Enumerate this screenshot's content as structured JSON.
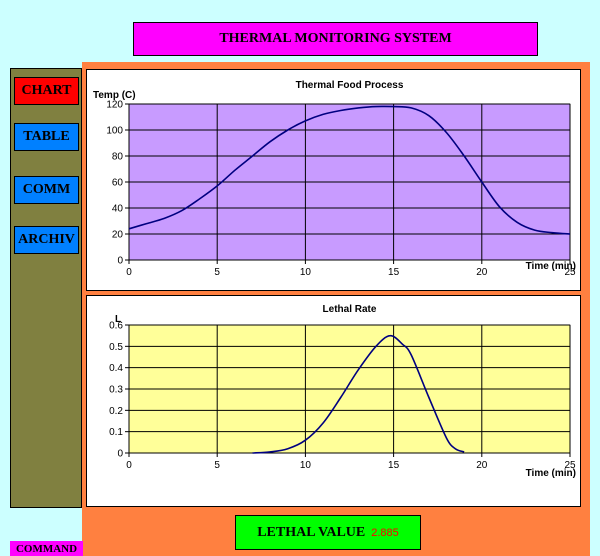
{
  "header": {
    "title": "THERMAL MONITORING SYSTEM"
  },
  "nav": {
    "items": [
      {
        "label": "CHART",
        "color": "#ff0000",
        "active": true
      },
      {
        "label": "TABLE",
        "color": "#0080ff",
        "active": false
      },
      {
        "label": "COMM",
        "color": "#0080ff",
        "active": false
      },
      {
        "label": "ARCHIV",
        "color": "#0080ff",
        "active": false
      }
    ]
  },
  "footer": {
    "lethal_label": "LETHAL VALUE",
    "lethal_value": "2.885",
    "command_label": "COMMAND"
  },
  "colors": {
    "background": "#ccffff",
    "panel": "#ff8040",
    "sidebar": "#808040",
    "accent": "#ff00ff",
    "line": "#000080"
  },
  "chart_data": [
    {
      "type": "line",
      "title": "Thermal Food Process",
      "ylabel": "Temp (C)",
      "xlabel": "Time (min)",
      "xlim": [
        0,
        25
      ],
      "ylim": [
        0,
        120
      ],
      "xticks": [
        0,
        5,
        10,
        15,
        20,
        25
      ],
      "yticks": [
        0,
        20,
        40,
        60,
        80,
        100,
        120
      ],
      "grid": true,
      "plot_bg": "#c89bff",
      "x": [
        0,
        1,
        2,
        3,
        4,
        5,
        6,
        7,
        8,
        9,
        10,
        11,
        12,
        13,
        14,
        15,
        16,
        17,
        18,
        19,
        20,
        21,
        22,
        23,
        24,
        25
      ],
      "values": [
        24,
        28,
        32,
        38,
        47,
        57,
        69,
        80,
        91,
        100,
        107,
        112,
        115,
        117,
        118,
        118,
        117,
        111,
        98,
        80,
        60,
        41,
        29,
        23,
        21,
        20
      ]
    },
    {
      "type": "line",
      "title": "Lethal Rate",
      "ylabel": "L",
      "xlabel": "Time (min)",
      "xlim": [
        0,
        25
      ],
      "ylim": [
        0,
        0.6
      ],
      "xticks": [
        0,
        5,
        10,
        15,
        20,
        25
      ],
      "yticks": [
        0,
        0.1,
        0.2,
        0.3,
        0.4,
        0.5,
        0.6
      ],
      "ytick_labels": [
        "0",
        "0.1",
        "0.2",
        "0.3",
        "0.4",
        "0.5",
        "0.6"
      ],
      "grid": true,
      "plot_bg": "#ffff99",
      "x": [
        7,
        8,
        9,
        10,
        11,
        12,
        13,
        14,
        14.8,
        15.5,
        16,
        17,
        18,
        18.5,
        19
      ],
      "values": [
        0,
        0.005,
        0.02,
        0.06,
        0.14,
        0.26,
        0.39,
        0.5,
        0.55,
        0.51,
        0.46,
        0.26,
        0.07,
        0.02,
        0.005
      ]
    }
  ]
}
